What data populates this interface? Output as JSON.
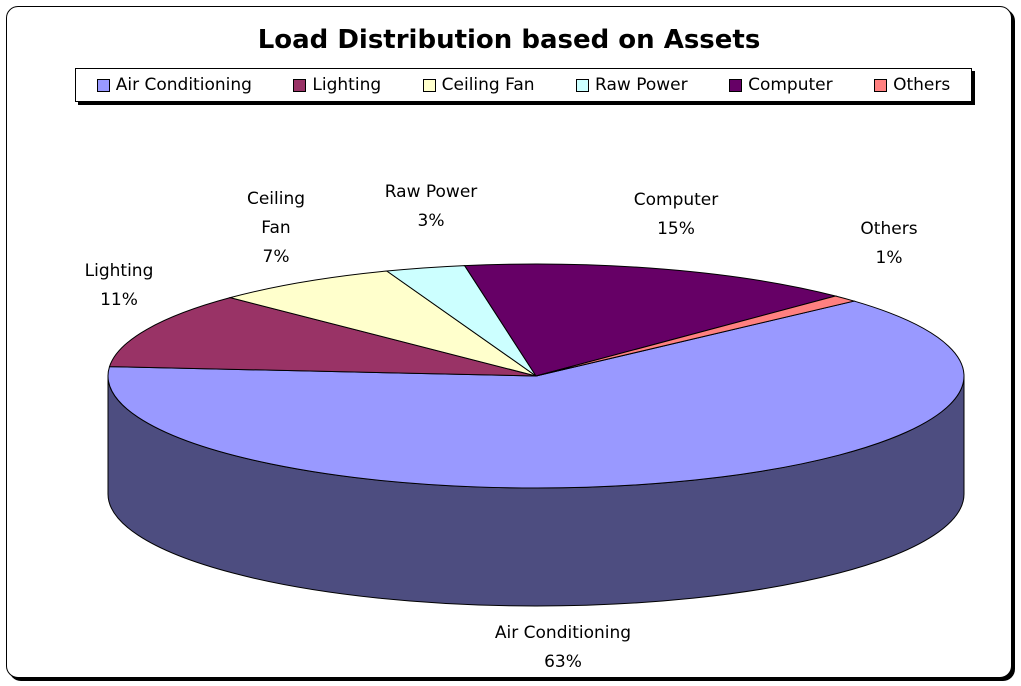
{
  "chart_data": {
    "type": "pie",
    "title": "Load Distribution based on Assets",
    "categories": [
      "Air Conditioning",
      "Lighting",
      "Ceiling Fan",
      "Raw Power",
      "Computer",
      "Others"
    ],
    "values": [
      63,
      11,
      7,
      3,
      15,
      1
    ],
    "value_labels": [
      "63%",
      "11%",
      "7%",
      "3%",
      "15%",
      "1%"
    ],
    "colors": [
      "#9999ff",
      "#993366",
      "#ffffcc",
      "#ccffff",
      "#660066",
      "#ff8080"
    ],
    "legend": "top"
  }
}
